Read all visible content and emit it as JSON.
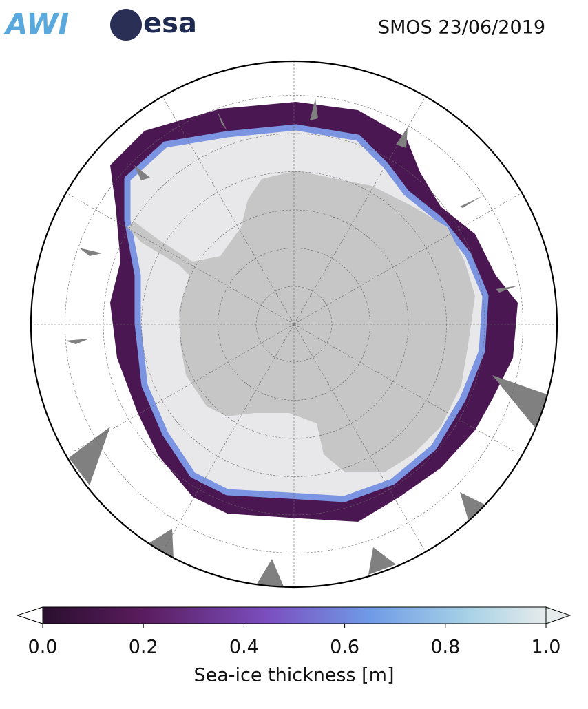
{
  "header": {
    "logos": [
      "AWI",
      "esa"
    ],
    "title": "SMOS 23/06/2019"
  },
  "map": {
    "colorbar": {
      "label": "Sea-ice thickness [m]",
      "lim": [
        0,
        1
      ],
      "ticks": [
        {
          "value": 0,
          "label": "0.0"
        },
        0.2,
        0.4,
        0.6,
        0.8,
        {
          "value": 1,
          "label": "1.0"
        }
      ]
    }
  }
}
